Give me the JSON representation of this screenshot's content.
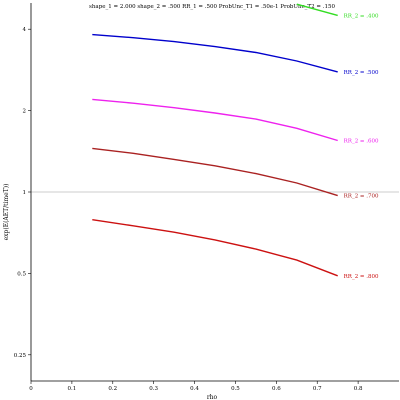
{
  "chart_data": {
    "type": "line",
    "title": "shape_1 = 2.000  shape_2 = .500  RR_1 = .500  ProbUnc_T1 = .50e-1  ProbUnc_T2 = .150",
    "xlabel": "rho",
    "ylabel": "exp(E(AET/timeT))",
    "y_scale": "log",
    "xlim": [
      0,
      0.9
    ],
    "ylim": [
      0.2,
      5
    ],
    "x_ticks": [
      0,
      0.1,
      0.2,
      0.3,
      0.4,
      0.5,
      0.6,
      0.7,
      0.8
    ],
    "x_tick_labels": [
      "0",
      "0.1",
      "0.2",
      "0.3",
      "0.4",
      "0.5",
      "0.6",
      "0.7",
      "0.8"
    ],
    "y_ticks": [
      0.25,
      0.5,
      1,
      2,
      4
    ],
    "y_tick_labels": [
      "0.25",
      "0.5",
      "1",
      "2",
      "4"
    ],
    "reference_line": {
      "y": 1,
      "color": "#bbbbbb"
    },
    "grid": false,
    "series": [
      {
        "name": "RR_2 = .400",
        "color": "#33dd22",
        "x": [
          0.65,
          0.75
        ],
        "y": [
          4.95,
          4.5
        ]
      },
      {
        "name": "RR_2 = .500",
        "color": "#0000cc",
        "x": [
          0.15,
          0.25,
          0.35,
          0.45,
          0.55,
          0.65,
          0.75
        ],
        "y": [
          3.82,
          3.72,
          3.6,
          3.45,
          3.28,
          3.05,
          2.78
        ]
      },
      {
        "name": "RR_2 = .600",
        "color": "#ee22ee",
        "x": [
          0.15,
          0.25,
          0.35,
          0.45,
          0.55,
          0.65,
          0.75
        ],
        "y": [
          2.2,
          2.13,
          2.05,
          1.96,
          1.86,
          1.72,
          1.55
        ]
      },
      {
        "name": "RR_2 = .700",
        "color": "#aa2222",
        "x": [
          0.15,
          0.25,
          0.35,
          0.45,
          0.55,
          0.65,
          0.75
        ],
        "y": [
          1.45,
          1.39,
          1.32,
          1.25,
          1.17,
          1.08,
          0.97
        ]
      },
      {
        "name": "RR_2 = .800",
        "color": "#cc1111",
        "x": [
          0.15,
          0.25,
          0.35,
          0.45,
          0.55,
          0.65,
          0.75
        ],
        "y": [
          0.79,
          0.75,
          0.71,
          0.665,
          0.615,
          0.56,
          0.49
        ]
      }
    ]
  }
}
